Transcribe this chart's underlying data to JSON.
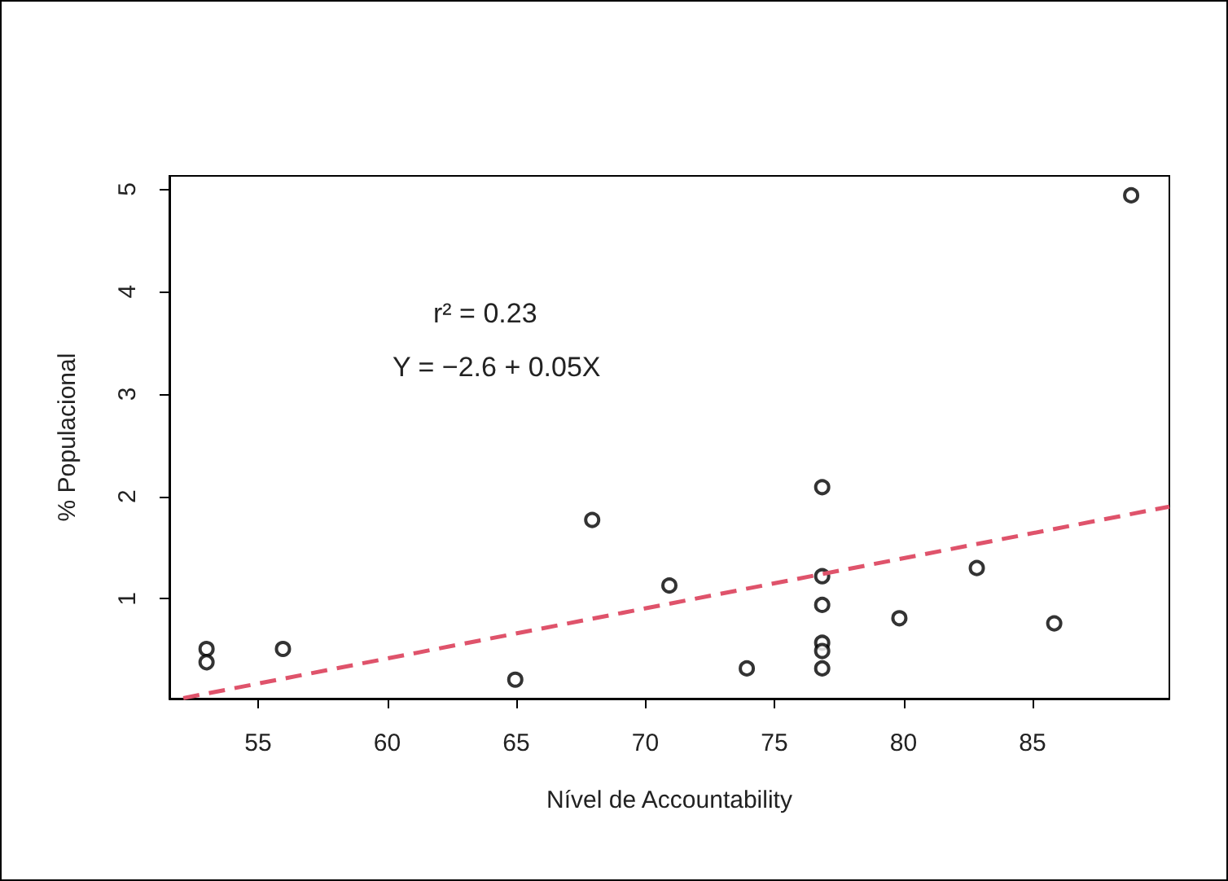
{
  "chart_data": {
    "type": "scatter",
    "xlabel": "Nível de Accountability",
    "ylabel": "% Populacional",
    "xlim": [
      51.56,
      90.3
    ],
    "xticks": [
      55,
      60,
      65,
      70,
      75,
      80,
      85
    ],
    "ylim": [
      0.025,
      5.13
    ],
    "yticks": [
      1,
      2,
      3,
      4,
      5
    ],
    "grid": false,
    "marker": "circle",
    "series": [
      {
        "color": "#000000",
        "x": [
          53.0,
          53.0,
          55.96,
          64.96,
          67.94,
          70.93,
          73.93,
          76.85,
          76.85,
          76.85,
          76.85,
          76.85,
          76.85,
          79.84,
          82.84,
          85.84,
          88.82
        ],
        "values": [
          0.51,
          0.38,
          0.51,
          0.21,
          1.77,
          1.13,
          0.32,
          2.09,
          1.22,
          0.94,
          0.57,
          0.49,
          0.32,
          0.81,
          1.3,
          0.76,
          4.94
        ]
      },
      {
        "type": "line",
        "color": "#df536b",
        "line_style": "dashed",
        "marker": "none",
        "x": [
          52.1,
          90.3
        ],
        "values": [
          0.03,
          1.9
        ]
      }
    ],
    "annotations": [
      "r² = 0.23",
      "Y = −2.6 + 0.05X"
    ]
  }
}
